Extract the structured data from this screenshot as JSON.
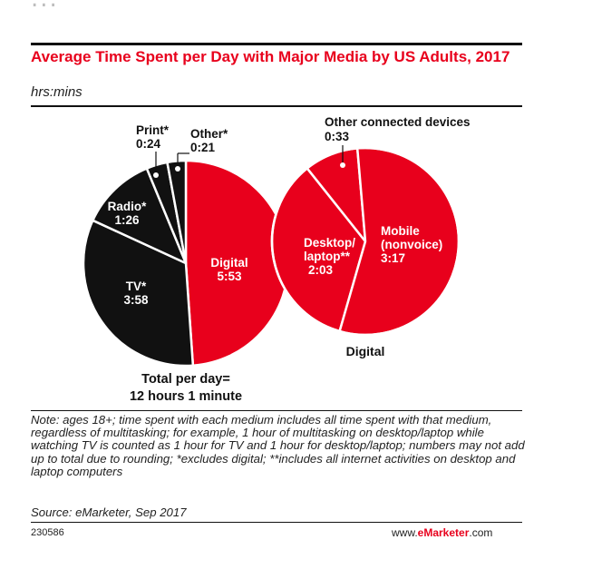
{
  "header_fragment": "...",
  "chart_data": {
    "type": "pie",
    "title": "Average Time Spent per Day with Major Media by US Adults, 2017",
    "subtitle": "hrs:mins",
    "pies": [
      {
        "name": "",
        "slices": [
          {
            "label": "Digital",
            "value_label": "5:53",
            "minutes": 353,
            "color": "#e8001c"
          },
          {
            "label": "TV*",
            "value_label": "3:58",
            "minutes": 238,
            "color": "#111111"
          },
          {
            "label": "Radio*",
            "value_label": "1:26",
            "minutes": 86,
            "color": "#111111"
          },
          {
            "label": "Print*",
            "value_label": "0:24",
            "minutes": 24,
            "color": "#111111"
          },
          {
            "label": "Other*",
            "value_label": "0:21",
            "minutes": 21,
            "color": "#111111"
          }
        ]
      },
      {
        "name": "Digital",
        "slices": [
          {
            "label": "Mobile (nonvoice)",
            "value_label": "3:17",
            "minutes": 197,
            "color": "#e8001c"
          },
          {
            "label": "Desktop/ laptop**",
            "value_label": "2:03",
            "minutes": 123,
            "color": "#e8001c"
          },
          {
            "label": "Other connected devices",
            "value_label": "0:33",
            "minutes": 33,
            "color": "#e8001c"
          }
        ]
      }
    ],
    "total_line1": "Total per day=",
    "total_line2": "12 hours 1 minute"
  },
  "note": "Note: ages 18+; time spent with each medium includes all time spent with that medium, regardless of multitasking; for example, 1 hour of multitasking on desktop/laptop while watching TV is counted as 1 hour for TV and 1 hour for desktop/laptop; numbers may not add up to total due to rounding; *excludes digital; **includes all internet activities on desktop and laptop computers",
  "source": "Source: eMarketer, Sep 2017",
  "code": "230586",
  "brand": {
    "prefix": "www.",
    "name": "eMarketer",
    "suffix": ".com"
  }
}
